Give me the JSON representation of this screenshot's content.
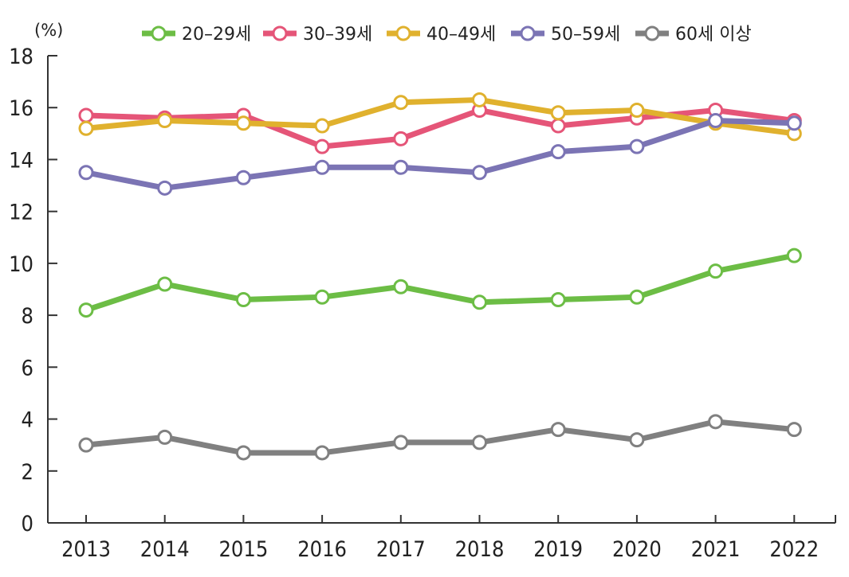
{
  "chart_data": {
    "type": "line",
    "title": "",
    "xlabel": "",
    "ylabel": "(%)",
    "ylim": [
      0,
      18
    ],
    "yticks": [
      0,
      2,
      4,
      6,
      8,
      10,
      12,
      14,
      16,
      18
    ],
    "categories": [
      "2013",
      "2014",
      "2015",
      "2016",
      "2017",
      "2018",
      "2019",
      "2020",
      "2021",
      "2022"
    ],
    "grid": false,
    "legend_position": "top",
    "series": [
      {
        "name": "20–29세",
        "color": "#6cbd45",
        "values": [
          8.2,
          9.2,
          8.6,
          8.7,
          9.1,
          8.5,
          8.6,
          8.7,
          9.7,
          10.3
        ]
      },
      {
        "name": "30–39세",
        "color": "#e55578",
        "values": [
          15.7,
          15.6,
          15.7,
          14.5,
          14.8,
          15.9,
          15.3,
          15.6,
          15.9,
          15.5
        ]
      },
      {
        "name": "40–49세",
        "color": "#e0b12e",
        "values": [
          15.2,
          15.5,
          15.4,
          15.3,
          16.2,
          16.3,
          15.8,
          15.9,
          15.4,
          15.0
        ]
      },
      {
        "name": "50–59세",
        "color": "#7b74b4",
        "values": [
          13.5,
          12.9,
          13.3,
          13.7,
          13.7,
          13.5,
          14.3,
          14.5,
          15.5,
          15.4
        ]
      },
      {
        "name": "60세 이상",
        "color": "#808080",
        "values": [
          3.0,
          3.3,
          2.7,
          2.7,
          3.1,
          3.1,
          3.6,
          3.2,
          3.9,
          3.6
        ]
      }
    ]
  }
}
